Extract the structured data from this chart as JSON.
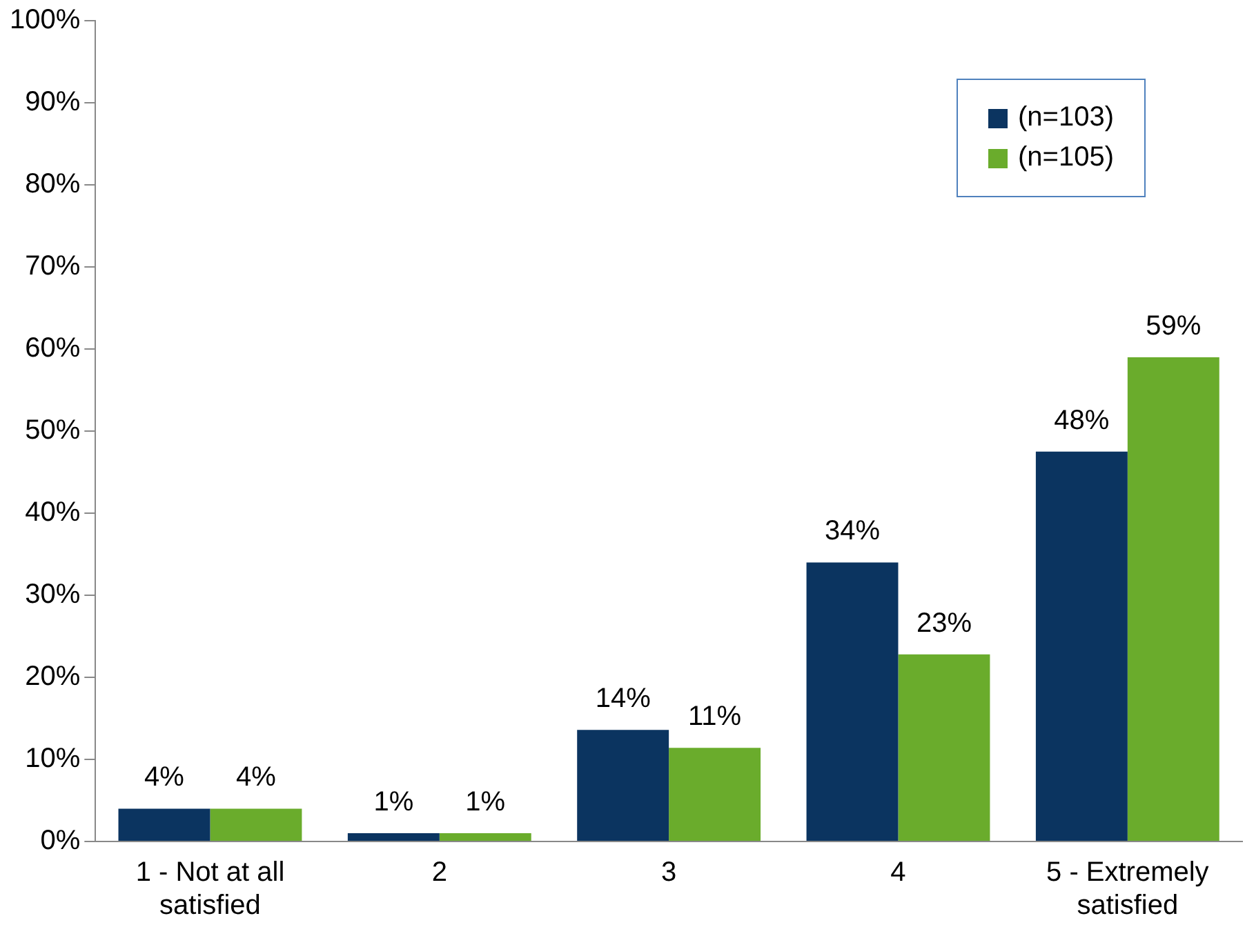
{
  "chart_data": {
    "type": "bar",
    "categories": [
      "1 - Not at all satisfied",
      "2",
      "3",
      "4",
      "5 - Extremely satisfied"
    ],
    "series": [
      {
        "name": "(n=103)",
        "color": "#0b3460",
        "values": [
          4,
          1,
          13.6,
          34,
          47.5
        ],
        "value_labels": [
          "4%",
          "1%",
          "14%",
          "34%",
          "48%"
        ]
      },
      {
        "name": "(n=105)",
        "color": "#6aac2c",
        "values": [
          4,
          1,
          11.4,
          22.8,
          59
        ],
        "value_labels": [
          "4%",
          "1%",
          "11%",
          "23%",
          "59%"
        ]
      }
    ],
    "ylim": [
      0,
      100
    ],
    "yticks": [
      {
        "value": 0,
        "label": "0%"
      },
      {
        "value": 10,
        "label": "10%"
      },
      {
        "value": 20,
        "label": "20%"
      },
      {
        "value": 30,
        "label": "30%"
      },
      {
        "value": 40,
        "label": "40%"
      },
      {
        "value": 50,
        "label": "50%"
      },
      {
        "value": 60,
        "label": "60%"
      },
      {
        "value": 70,
        "label": "70%"
      },
      {
        "value": 80,
        "label": "80%"
      },
      {
        "value": 90,
        "label": "90%"
      },
      {
        "value": 100,
        "label": "100%"
      }
    ],
    "grid": false,
    "legend": "top right"
  }
}
